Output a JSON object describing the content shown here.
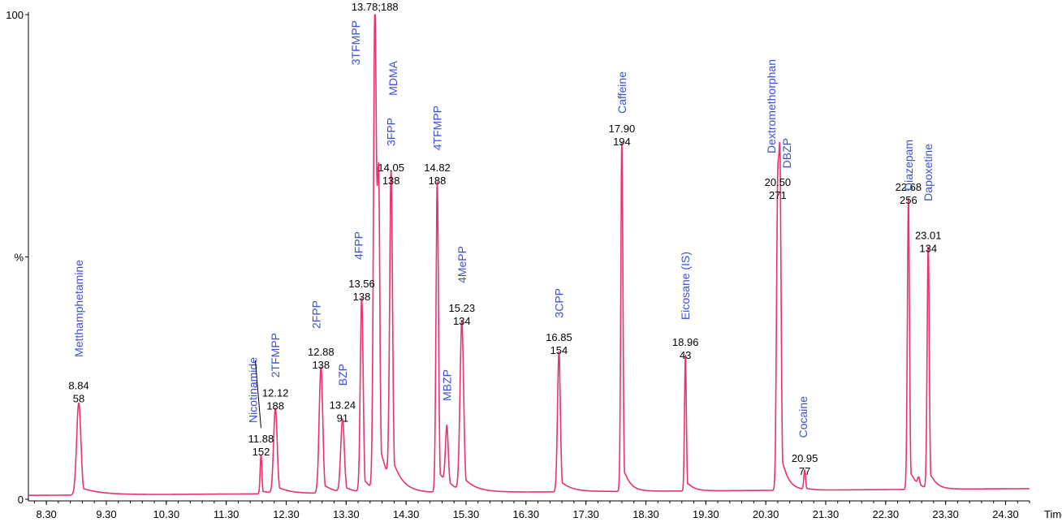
{
  "chart_data": {
    "type": "line",
    "title": "",
    "xlabel": "Time",
    "ylabel": "%",
    "xlim": [
      8.0,
      24.7
    ],
    "ylim": [
      0,
      100
    ],
    "x_ticks": [
      "8.30",
      "9.30",
      "10.30",
      "11.30",
      "12.30",
      "13.30",
      "14.30",
      "15.30",
      "16.30",
      "17.30",
      "18.30",
      "19.30",
      "20.30",
      "21.30",
      "22.30",
      "23.30",
      "24.30"
    ],
    "y_ticks": [
      "0",
      "%",
      "100"
    ],
    "baseline_start": 0.8,
    "baseline_end": 2.2,
    "colors": {
      "trace": "#e8336b",
      "compound_label": "#3a4fd6",
      "value_label": "#000000"
    },
    "peaks": [
      {
        "rt": 8.84,
        "height": 19,
        "width": 0.06,
        "tail": 0.9,
        "name": "Metthamphetamine",
        "rt_label": "8.84",
        "mz_label": "58"
      },
      {
        "rt": 11.88,
        "height": 8,
        "width": 0.025,
        "tail": 0.4,
        "name": "Nicotinamide",
        "rt_label": "11.88",
        "mz_label": "152"
      },
      {
        "rt": 12.12,
        "height": 17.5,
        "width": 0.05,
        "tail": 0.6,
        "name": "2TFMPP",
        "rt_label": "12.12",
        "mz_label": "188"
      },
      {
        "rt": 12.88,
        "height": 26,
        "width": 0.05,
        "tail": 0.5,
        "name": "2FPP",
        "rt_label": "12.88",
        "mz_label": "138"
      },
      {
        "rt": 13.24,
        "height": 15,
        "width": 0.05,
        "tail": 0.5,
        "name": "BZP",
        "rt_label": "13.24",
        "mz_label": "91"
      },
      {
        "rt": 13.56,
        "height": 40,
        "width": 0.04,
        "tail": 0.4,
        "name": "4FPP",
        "rt_label": "13.56",
        "mz_label": "138"
      },
      {
        "rt": 13.78,
        "height": 100,
        "width": 0.04,
        "tail": 0.4,
        "name": "3TFMPP",
        "rt_label": "13.78;188",
        "mz_label": ""
      },
      {
        "rt": 13.84,
        "height": 62,
        "width": 0.035,
        "tail": 0.4,
        "name": "MDMA",
        "rt_label": "",
        "mz_label": ""
      },
      {
        "rt": 14.05,
        "height": 64,
        "width": 0.04,
        "tail": 0.5,
        "name": "3FPP",
        "rt_label": "14.05",
        "mz_label": "138"
      },
      {
        "rt": 14.82,
        "height": 64,
        "width": 0.035,
        "tail": 0.4,
        "name": "4TFMPP",
        "rt_label": "14.82",
        "mz_label": "188"
      },
      {
        "rt": 14.98,
        "height": 12,
        "width": 0.04,
        "tail": 0.4,
        "name": "MBZP",
        "rt_label": "",
        "mz_label": ""
      },
      {
        "rt": 15.23,
        "height": 35,
        "width": 0.05,
        "tail": 0.6,
        "name": "4MePP",
        "rt_label": "15.23",
        "mz_label": "134"
      },
      {
        "rt": 16.85,
        "height": 29,
        "width": 0.04,
        "tail": 0.5,
        "name": "3CPP",
        "rt_label": "16.85",
        "mz_label": "154"
      },
      {
        "rt": 17.9,
        "height": 72,
        "width": 0.03,
        "tail": 0.3,
        "name": "Caffeine",
        "rt_label": "17.90",
        "mz_label": "194"
      },
      {
        "rt": 18.96,
        "height": 28,
        "width": 0.025,
        "tail": 0.3,
        "name": "Eicosane (IS)",
        "rt_label": "18.96",
        "mz_label": "43"
      },
      {
        "rt": 20.5,
        "height": 61,
        "width": 0.035,
        "tail": 0.3,
        "name": "Dextromethorphan",
        "rt_label": "20.50",
        "mz_label": "271"
      },
      {
        "rt": 20.54,
        "height": 59,
        "width": 0.03,
        "tail": 0.3,
        "name": "DBZP",
        "rt_label": "",
        "mz_label": ""
      },
      {
        "rt": 20.95,
        "height": 4,
        "width": 0.025,
        "tail": 0.3,
        "name": "Cocaine",
        "rt_label": "20.95",
        "mz_label": "77"
      },
      {
        "rt": 22.68,
        "height": 60,
        "width": 0.03,
        "tail": 0.3,
        "name": "Diazepam",
        "rt_label": "22.68",
        "mz_label": "256"
      },
      {
        "rt": 22.85,
        "height": 1.5,
        "width": 0.03,
        "tail": 0.3,
        "name": "",
        "rt_label": "",
        "mz_label": ""
      },
      {
        "rt": 23.01,
        "height": 50,
        "width": 0.03,
        "tail": 0.3,
        "name": "Dapoxetine",
        "rt_label": "23.01",
        "mz_label": "134"
      }
    ],
    "annotations": [
      {
        "peak": "Metthamphetamine",
        "name_anchor": "above"
      },
      {
        "peak": "Nicotinamide",
        "leader_line": true
      }
    ]
  }
}
